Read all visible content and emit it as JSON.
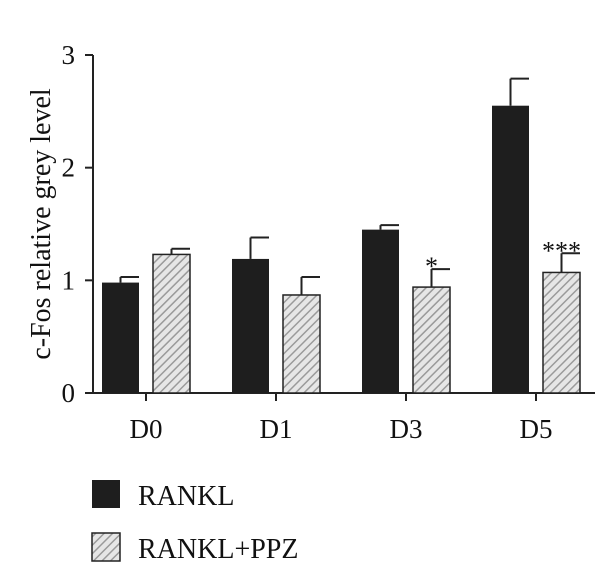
{
  "chart_data": {
    "type": "bar",
    "title": "",
    "xlabel": "",
    "ylabel": "c-Fos relative grey level",
    "ylim": [
      0,
      3
    ],
    "yticks": [
      "0",
      "1",
      "2",
      "3"
    ],
    "categories": [
      "D0",
      "D1",
      "D3",
      "D5"
    ],
    "series": [
      {
        "name": "RANKL",
        "values": [
          0.98,
          1.19,
          1.45,
          2.55
        ],
        "errors": [
          0.05,
          0.19,
          0.04,
          0.24
        ],
        "fill": "solid",
        "color": "#1e1e1e"
      },
      {
        "name": "RANKL+PPZ",
        "values": [
          1.23,
          0.87,
          0.94,
          1.07
        ],
        "errors": [
          0.05,
          0.16,
          0.16,
          0.17
        ],
        "fill": "hatched",
        "color": "#b4b4b4"
      }
    ],
    "significance": [
      "",
      "",
      "*",
      "***"
    ],
    "legend": {
      "position": "bottom-left",
      "entries": [
        "RANKL",
        "RANKL+PPZ"
      ]
    },
    "grid": false
  }
}
